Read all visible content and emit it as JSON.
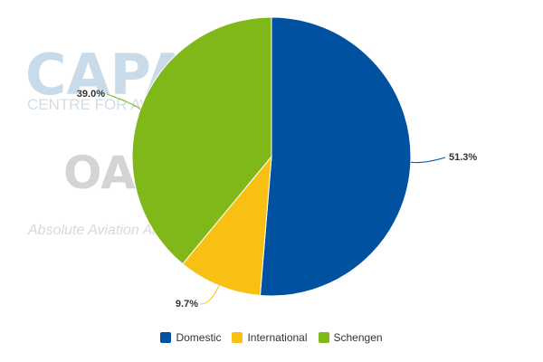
{
  "chart_data": {
    "type": "pie",
    "categories": [
      "Domestic",
      "International",
      "Schengen"
    ],
    "values": [
      51.3,
      9.7,
      39.0
    ],
    "value_labels": [
      "51.3%",
      "9.7%",
      "39.0%"
    ],
    "colors": [
      "#0052a0",
      "#f8c012",
      "#80b81a"
    ],
    "legend_position": "bottom-center",
    "start_angle_deg": 0,
    "direction": "clockwise"
  },
  "watermark": {
    "capa_logo": "CAPA",
    "capa_subtitle": "CENTRE FOR AVIATION",
    "oag_logo": "OAG",
    "oag_tagline": "Absolute Aviation Answers"
  }
}
